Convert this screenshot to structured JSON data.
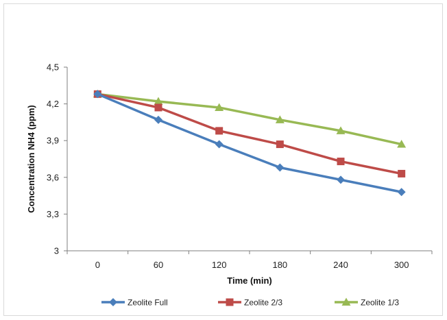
{
  "chart_data": {
    "type": "line",
    "x": [
      0,
      60,
      120,
      180,
      240,
      300
    ],
    "categories": [
      "0",
      "60",
      "120",
      "180",
      "240",
      "300"
    ],
    "xlabel": "Time (min)",
    "ylabel": "Concentration NH4  (ppm)",
    "ylim": [
      3,
      4.5
    ],
    "yticks": [
      "3",
      "3,3",
      "3,6",
      "3,9",
      "4,2",
      "4,5"
    ],
    "grid": false,
    "legend_position": "bottom",
    "series": [
      {
        "name": "Zeolite Full",
        "color": "#4a7ebb",
        "marker": "diamond",
        "values": [
          4.28,
          4.07,
          3.87,
          3.68,
          3.58,
          3.48
        ]
      },
      {
        "name": "Zeolite 2/3",
        "color": "#be4b48",
        "marker": "square",
        "values": [
          4.28,
          4.17,
          3.98,
          3.87,
          3.73,
          3.63
        ]
      },
      {
        "name": "Zeolite 1/3",
        "color": "#98b954",
        "marker": "triangle",
        "values": [
          4.28,
          4.22,
          4.17,
          4.07,
          3.98,
          3.87
        ]
      }
    ]
  }
}
